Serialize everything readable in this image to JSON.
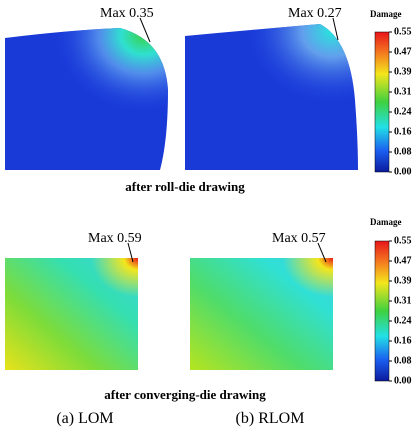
{
  "figure": {
    "panels": [
      {
        "max_label": "Max 0.35"
      },
      {
        "max_label": "Max 0.27"
      },
      {
        "max_label": "Max 0.59"
      },
      {
        "max_label": "Max 0.57"
      }
    ],
    "colorbars": [
      {
        "title": "Damage",
        "ticks": [
          "0.55",
          "0.47",
          "0.39",
          "0.31",
          "0.24",
          "0.16",
          "0.08",
          "0.00"
        ]
      },
      {
        "title": "Damage",
        "ticks": [
          "0.55",
          "0.47",
          "0.39",
          "0.31",
          "0.24",
          "0.16",
          "0.08",
          "0.00"
        ]
      }
    ],
    "row_captions": [
      "after roll-die drawing",
      "after converging-die drawing"
    ],
    "column_captions": [
      "(a) LOM",
      "(b) RLOM"
    ]
  }
}
